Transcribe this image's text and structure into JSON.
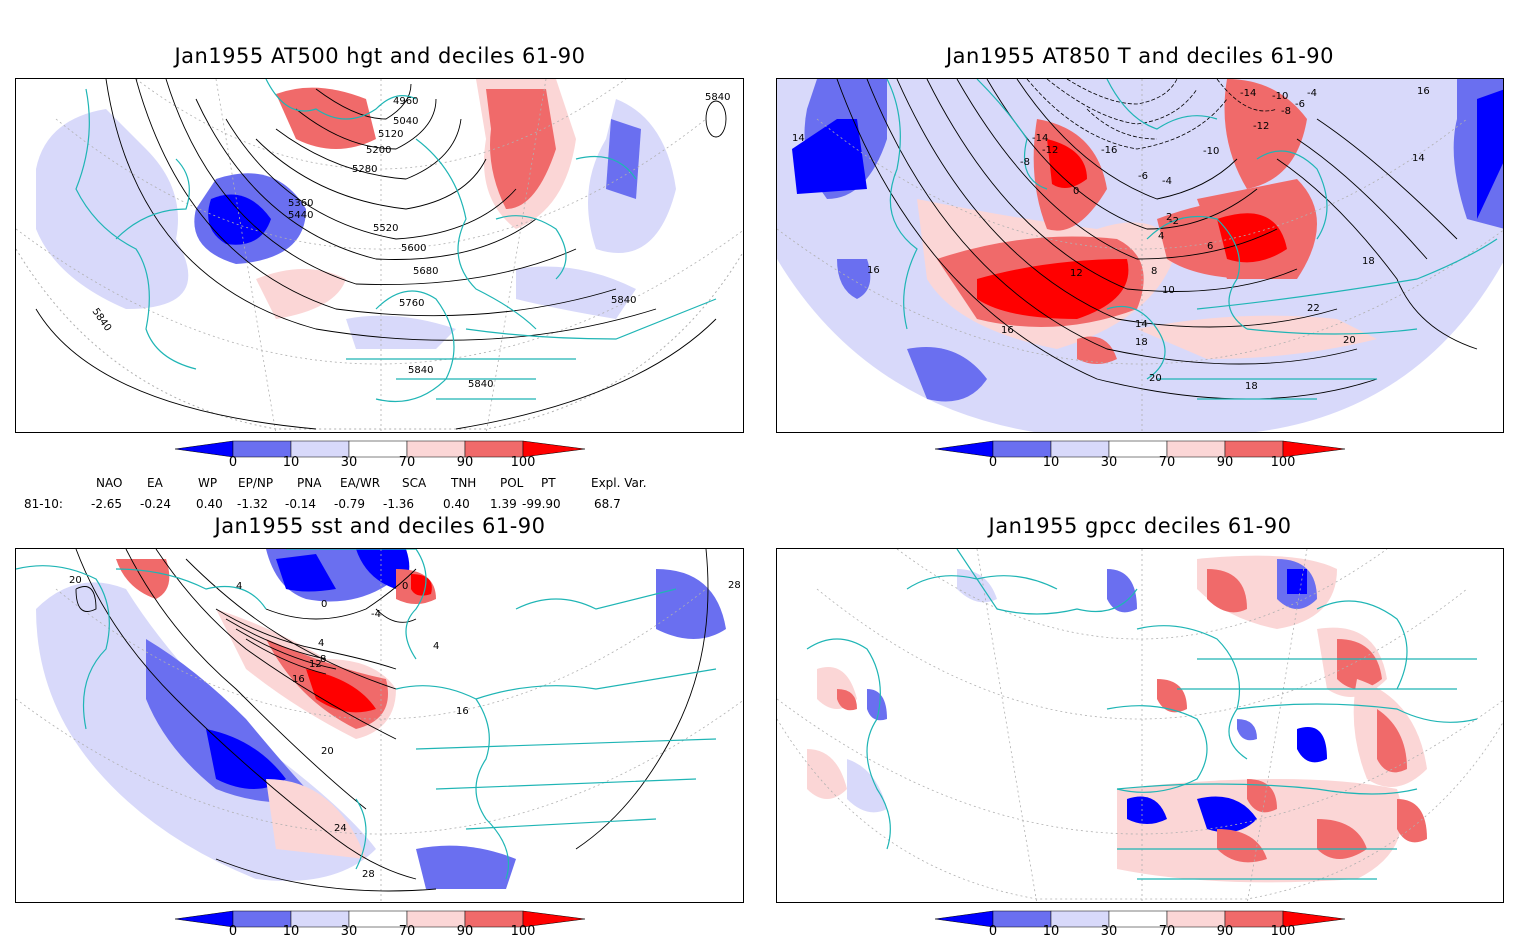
{
  "panels": [
    {
      "id": "p1",
      "title": "Jan1955 AT500 hgt and deciles 61-90",
      "contour_labels": [
        "4960",
        "5040",
        "5120",
        "5200",
        "5280",
        "5360",
        "5440",
        "5520",
        "5600",
        "5680",
        "5760",
        "5840",
        "5840",
        "5840",
        "5840",
        "5840"
      ]
    },
    {
      "id": "p2",
      "title": "Jan1955 AT850 T and deciles 61-90",
      "contour_labels": [
        "-14",
        "-12",
        "-8",
        "-16",
        "-10",
        "-6",
        "-4",
        "-2",
        "0",
        "2",
        "4",
        "6",
        "8",
        "10",
        "12",
        "14",
        "16",
        "18",
        "20",
        "22",
        "-14",
        "-12",
        "-10",
        "-8",
        "-6",
        "-4",
        "16",
        "14",
        "18",
        "20",
        "18",
        "16",
        "14"
      ]
    },
    {
      "id": "p3",
      "title": "Jan1955 sst and deciles 61-90",
      "contour_labels": [
        "-4",
        "0",
        "0",
        "4",
        "8",
        "12",
        "16",
        "20",
        "24",
        "28",
        "20",
        "28",
        "4",
        "16",
        "4"
      ]
    },
    {
      "id": "p4",
      "title": "Jan1955 gpcc deciles 61-90",
      "contour_labels": []
    }
  ],
  "colorbar": {
    "labels": [
      "0",
      "10",
      "30",
      "70",
      "90",
      "100"
    ],
    "colors": [
      "#0000ff",
      "#6a6ff0",
      "#d8d9fa",
      "#ffffff",
      "#fbd6d6",
      "#f06a6a",
      "#ff0000"
    ]
  },
  "indices": {
    "row_label": "81-10:",
    "headers": [
      "NAO",
      "EA",
      "WP",
      "EP/NP",
      "PNA",
      "EA/WR",
      "SCA",
      "TNH",
      "POL",
      "PT",
      "Expl. Var."
    ],
    "values": [
      "-2.65",
      "-0.24",
      "0.40",
      "-1.32",
      "-0.14",
      "-0.79",
      "-1.36",
      "0.40",
      "1.39",
      "-99.90",
      "68.7"
    ]
  },
  "style": {
    "coast_color": "#1fb5b5",
    "grid_color": "#b0b0b0",
    "blue_strong": "#0000ff",
    "blue_mid": "#6a6ff0",
    "blue_light": "#d8d9fa",
    "red_light": "#fbd6d6",
    "red_mid": "#f06a6a",
    "red_strong": "#ff0000"
  }
}
